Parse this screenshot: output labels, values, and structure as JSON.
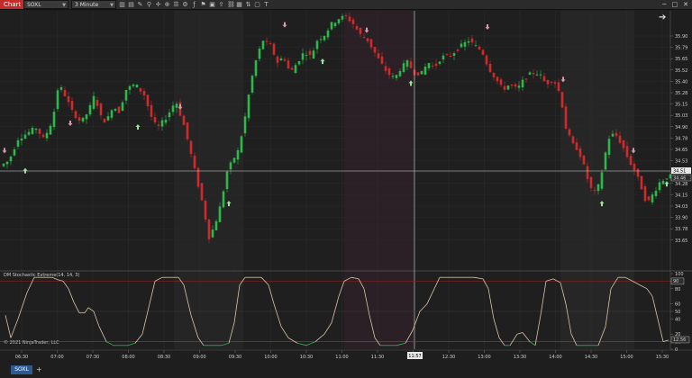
{
  "window": {
    "tab_label": "Chart",
    "symbol": "SOXL",
    "interval": "3 Minute",
    "controls": [
      "─",
      "□",
      "✕"
    ]
  },
  "colors": {
    "up": "#2db84a",
    "down": "#d02a2a",
    "crosshair": "#d8d8d8",
    "stoch": "#d8c6a8",
    "stoch_low": "#2db84a",
    "band_upper": "#8a2020",
    "band_lower": "#2a7a2a",
    "marker_up": "#9be39b",
    "marker_down": "#d89aa8"
  },
  "price_axis": {
    "ticks": [
      "35.90",
      "35.79",
      "35.65",
      "35.52",
      "35.40",
      "35.28",
      "35.15",
      "35.03",
      "34.90",
      "34.78",
      "34.65",
      "34.53",
      "34.40",
      "34.28",
      "34.15",
      "34.03",
      "33.90",
      "33.78",
      "33.65"
    ],
    "crosshair_label": "34.51",
    "last_label": "34.46"
  },
  "indicator": {
    "label": "DM Stochastic Extreme(14, 14, 3)",
    "ticks": [
      "100",
      "90",
      "80",
      "60",
      "50",
      "40",
      "20",
      "10",
      "0"
    ],
    "badge_upper": "90",
    "badge_value": "12.56"
  },
  "time_axis": {
    "ticks": [
      "06:30",
      "07:00",
      "07:30",
      "08:00",
      "08:30",
      "09:00",
      "09:30",
      "10:00",
      "10:30",
      "11:00",
      "11:30",
      "12:00",
      "12:30",
      "13:00",
      "13:30",
      "14:00",
      "14:30",
      "15:00",
      "15:30"
    ],
    "crosshair_label": "11:57"
  },
  "footer": {
    "copyright": "© 2021 NinjaTrader, LLC",
    "symbol_tab": "SOXL",
    "add_tab": "+"
  },
  "chart_data": {
    "type": "candlestick",
    "y_range": [
      33.6,
      35.97
    ],
    "path": [
      [
        0,
        34.55
      ],
      [
        10,
        34.6
      ],
      [
        20,
        34.8
      ],
      [
        30,
        34.85
      ],
      [
        40,
        34.9
      ],
      [
        48,
        34.8
      ],
      [
        55,
        34.9
      ],
      [
        60,
        35.05
      ],
      [
        65,
        35.3
      ],
      [
        72,
        35.2
      ],
      [
        80,
        35.05
      ],
      [
        90,
        34.95
      ],
      [
        98,
        35.05
      ],
      [
        105,
        35.2
      ],
      [
        112,
        35.0
      ],
      [
        118,
        34.95
      ],
      [
        125,
        35.1
      ],
      [
        132,
        35.05
      ],
      [
        140,
        35.25
      ],
      [
        150,
        35.3
      ],
      [
        160,
        35.2
      ],
      [
        170,
        34.95
      ],
      [
        175,
        34.9
      ],
      [
        185,
        35.0
      ],
      [
        195,
        35.15
      ],
      [
        205,
        34.9
      ],
      [
        215,
        34.55
      ],
      [
        225,
        34.2
      ],
      [
        232,
        33.9
      ],
      [
        238,
        34.0
      ],
      [
        245,
        34.2
      ],
      [
        252,
        34.5
      ],
      [
        258,
        34.6
      ],
      [
        265,
        34.7
      ],
      [
        272,
        35.0
      ],
      [
        278,
        35.3
      ],
      [
        285,
        35.55
      ],
      [
        292,
        35.7
      ],
      [
        300,
        35.65
      ],
      [
        308,
        35.5
      ],
      [
        315,
        35.55
      ],
      [
        322,
        35.4
      ],
      [
        330,
        35.5
      ],
      [
        338,
        35.6
      ],
      [
        345,
        35.55
      ],
      [
        352,
        35.7
      ],
      [
        360,
        35.75
      ],
      [
        368,
        35.85
      ],
      [
        376,
        35.9
      ],
      [
        384,
        35.92
      ],
      [
        392,
        35.85
      ],
      [
        400,
        35.75
      ],
      [
        408,
        35.7
      ],
      [
        415,
        35.6
      ],
      [
        422,
        35.5
      ],
      [
        430,
        35.4
      ],
      [
        438,
        35.35
      ],
      [
        445,
        35.45
      ],
      [
        452,
        35.5
      ],
      [
        460,
        35.4
      ],
      [
        468,
        35.4
      ],
      [
        475,
        35.5
      ],
      [
        482,
        35.45
      ],
      [
        490,
        35.55
      ],
      [
        498,
        35.55
      ],
      [
        505,
        35.6
      ],
      [
        512,
        35.65
      ],
      [
        520,
        35.7
      ],
      [
        527,
        35.65
      ],
      [
        535,
        35.6
      ],
      [
        542,
        35.45
      ],
      [
        550,
        35.35
      ],
      [
        558,
        35.25
      ],
      [
        566,
        35.3
      ],
      [
        574,
        35.25
      ],
      [
        582,
        35.35
      ],
      [
        590,
        35.4
      ],
      [
        598,
        35.4
      ],
      [
        606,
        35.3
      ],
      [
        614,
        35.35
      ],
      [
        622,
        35.2
      ],
      [
        628,
        34.9
      ],
      [
        635,
        34.75
      ],
      [
        642,
        34.7
      ],
      [
        648,
        34.55
      ],
      [
        655,
        34.35
      ],
      [
        662,
        34.3
      ],
      [
        668,
        34.5
      ],
      [
        675,
        34.8
      ],
      [
        682,
        34.85
      ],
      [
        690,
        34.75
      ],
      [
        698,
        34.6
      ],
      [
        705,
        34.5
      ],
      [
        712,
        34.35
      ],
      [
        718,
        34.2
      ],
      [
        725,
        34.3
      ],
      [
        732,
        34.4
      ],
      [
        740,
        34.45
      ],
      [
        746,
        34.46
      ]
    ],
    "markers_up": [
      [
        28,
        34.5
      ],
      [
        153,
        34.9
      ],
      [
        254,
        34.2
      ],
      [
        358,
        35.5
      ],
      [
        456,
        35.3
      ],
      [
        668,
        34.2
      ],
      [
        740,
        34.38
      ]
    ],
    "markers_down": [
      [
        5,
        34.7
      ],
      [
        78,
        34.95
      ],
      [
        200,
        35.1
      ],
      [
        316,
        35.85
      ],
      [
        407,
        35.8
      ],
      [
        541,
        35.83
      ],
      [
        625,
        35.35
      ],
      [
        703,
        34.7
      ]
    ],
    "stochastic": [
      [
        6,
        45
      ],
      [
        12,
        15
      ],
      [
        20,
        40
      ],
      [
        30,
        75
      ],
      [
        38,
        95
      ],
      [
        46,
        95
      ],
      [
        52,
        95
      ],
      [
        58,
        95
      ],
      [
        64,
        92
      ],
      [
        70,
        90
      ],
      [
        76,
        80
      ],
      [
        82,
        62
      ],
      [
        88,
        48
      ],
      [
        94,
        48
      ],
      [
        98,
        55
      ],
      [
        104,
        50
      ],
      [
        110,
        30
      ],
      [
        118,
        10
      ],
      [
        126,
        5
      ],
      [
        134,
        5
      ],
      [
        142,
        5
      ],
      [
        150,
        8
      ],
      [
        158,
        20
      ],
      [
        166,
        60
      ],
      [
        172,
        90
      ],
      [
        180,
        95
      ],
      [
        190,
        95
      ],
      [
        198,
        95
      ],
      [
        204,
        85
      ],
      [
        212,
        45
      ],
      [
        220,
        15
      ],
      [
        226,
        5
      ],
      [
        236,
        5
      ],
      [
        246,
        5
      ],
      [
        254,
        8
      ],
      [
        260,
        35
      ],
      [
        266,
        85
      ],
      [
        272,
        95
      ],
      [
        280,
        95
      ],
      [
        290,
        95
      ],
      [
        298,
        85
      ],
      [
        304,
        60
      ],
      [
        312,
        30
      ],
      [
        320,
        15
      ],
      [
        330,
        8
      ],
      [
        340,
        5
      ],
      [
        350,
        10
      ],
      [
        360,
        20
      ],
      [
        368,
        35
      ],
      [
        376,
        70
      ],
      [
        382,
        90
      ],
      [
        390,
        95
      ],
      [
        398,
        93
      ],
      [
        404,
        80
      ],
      [
        410,
        45
      ],
      [
        416,
        15
      ],
      [
        422,
        5
      ],
      [
        430,
        5
      ],
      [
        440,
        5
      ],
      [
        450,
        8
      ],
      [
        458,
        25
      ],
      [
        466,
        50
      ],
      [
        474,
        60
      ],
      [
        482,
        80
      ],
      [
        488,
        95
      ],
      [
        496,
        95
      ],
      [
        506,
        95
      ],
      [
        516,
        95
      ],
      [
        526,
        95
      ],
      [
        536,
        93
      ],
      [
        542,
        80
      ],
      [
        548,
        40
      ],
      [
        554,
        15
      ],
      [
        560,
        5
      ],
      [
        566,
        5
      ],
      [
        574,
        20
      ],
      [
        580,
        22
      ],
      [
        588,
        10
      ],
      [
        594,
        5
      ],
      [
        600,
        45
      ],
      [
        606,
        90
      ],
      [
        614,
        93
      ],
      [
        622,
        88
      ],
      [
        628,
        60
      ],
      [
        634,
        20
      ],
      [
        640,
        5
      ],
      [
        648,
        5
      ],
      [
        656,
        5
      ],
      [
        664,
        5
      ],
      [
        672,
        30
      ],
      [
        678,
        80
      ],
      [
        686,
        95
      ],
      [
        694,
        95
      ],
      [
        702,
        90
      ],
      [
        710,
        85
      ],
      [
        718,
        80
      ],
      [
        724,
        70
      ],
      [
        730,
        40
      ],
      [
        736,
        10
      ],
      [
        742,
        12
      ]
    ]
  }
}
